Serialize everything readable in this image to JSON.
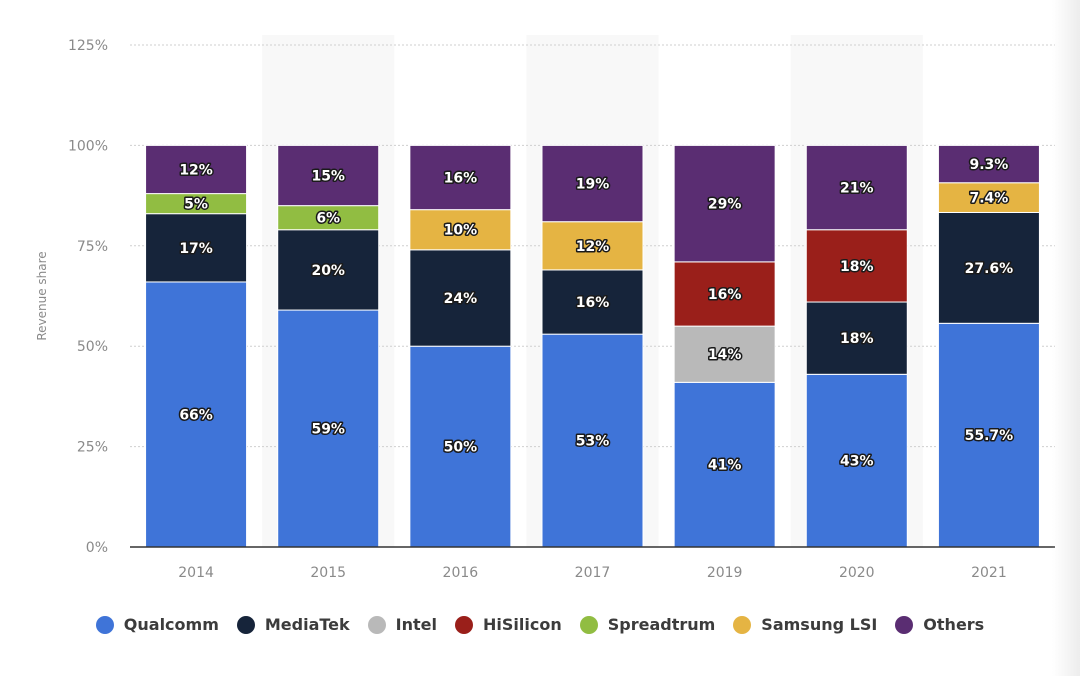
{
  "chart_data": {
    "type": "bar",
    "stacked": true,
    "title": "",
    "xlabel": "",
    "ylabel": "Revenue share",
    "ylim": [
      0,
      125
    ],
    "yticks": [
      "0%",
      "25%",
      "50%",
      "75%",
      "100%",
      "125%"
    ],
    "ytick_values": [
      0,
      25,
      50,
      75,
      100,
      125
    ],
    "grid": true,
    "legend_position": "bottom",
    "categories": [
      "2014",
      "2015",
      "2016",
      "2017",
      "2019",
      "2020",
      "2021"
    ],
    "series": [
      {
        "name": "Qualcomm",
        "color": "#3f74d8",
        "values": [
          66,
          59,
          50,
          53,
          41,
          43,
          55.7
        ],
        "labels": [
          "66%",
          "59%",
          "50%",
          "53%",
          "41%",
          "43%",
          "55.7%"
        ]
      },
      {
        "name": "MediaTek",
        "color": "#16243a",
        "values": [
          17,
          20,
          24,
          16,
          null,
          18,
          27.6
        ],
        "labels": [
          "17%",
          "20%",
          "24%",
          "16%",
          "",
          "18%",
          "27.6%"
        ]
      },
      {
        "name": "Intel",
        "color": "#b9b9b9",
        "values": [
          null,
          null,
          null,
          null,
          14,
          null,
          null
        ],
        "labels": [
          "",
          "",
          "",
          "",
          "14%",
          "",
          ""
        ]
      },
      {
        "name": "HiSilicon",
        "color": "#9a1f1a",
        "values": [
          null,
          null,
          null,
          null,
          16,
          18,
          null
        ],
        "labels": [
          "",
          "",
          "",
          "",
          "16%",
          "18%",
          ""
        ]
      },
      {
        "name": "Spreadtrum",
        "color": "#91bd42",
        "values": [
          5,
          6,
          null,
          null,
          null,
          null,
          null
        ],
        "labels": [
          "5%",
          "6%",
          "",
          "",
          "",
          "",
          ""
        ]
      },
      {
        "name": "Samsung LSI",
        "color": "#e5b443",
        "values": [
          null,
          null,
          10,
          12,
          null,
          null,
          7.4
        ],
        "labels": [
          "",
          "",
          "10%",
          "12%",
          "",
          "",
          "7.4%"
        ]
      },
      {
        "name": "Others",
        "color": "#5a2d72",
        "values": [
          12,
          15,
          16,
          19,
          29,
          21,
          9.3
        ],
        "labels": [
          "12%",
          "15%",
          "16%",
          "19%",
          "29%",
          "21%",
          "9.3%"
        ]
      }
    ]
  },
  "legend": [
    {
      "label": "Qualcomm",
      "color": "#3f74d8"
    },
    {
      "label": "MediaTek",
      "color": "#16243a"
    },
    {
      "label": "Intel",
      "color": "#b9b9b9"
    },
    {
      "label": "HiSilicon",
      "color": "#9a1f1a"
    },
    {
      "label": "Spreadtrum",
      "color": "#91bd42"
    },
    {
      "label": "Samsung LSI",
      "color": "#e5b443"
    },
    {
      "label": "Others",
      "color": "#5a2d72"
    }
  ]
}
